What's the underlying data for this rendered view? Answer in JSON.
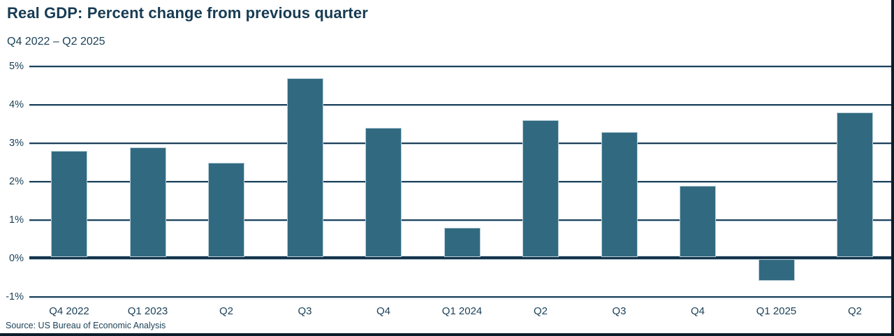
{
  "header": {
    "title": "Real GDP: Percent change from previous quarter",
    "subtitle": "Q4 2022 – Q2 2025"
  },
  "source": "Source: US Bureau of Economic Analysis",
  "colors": {
    "background": "#FFFFFF",
    "bar": "#316A80",
    "grid": "#1E4059",
    "zero_line": "#16354C",
    "text": "#1C4258",
    "title_text": "#173C54",
    "frame": "#0B1D2A"
  },
  "chart_data": {
    "type": "bar",
    "title": "Real GDP: Percent change from previous quarter",
    "subtitle": "Q4 2022 – Q2 2025",
    "categories": [
      "Q4 2022",
      "Q1 2023",
      "Q2",
      "Q3",
      "Q4",
      "Q1 2024",
      "Q2",
      "Q3",
      "Q4",
      "Q1 2025",
      "Q2"
    ],
    "values": [
      2.8,
      2.9,
      2.5,
      4.7,
      3.4,
      0.8,
      3.6,
      3.3,
      1.9,
      -0.6,
      3.8
    ],
    "xlabel": "",
    "ylabel": "",
    "ylim": [
      -1,
      5
    ],
    "yticks": [
      5,
      4,
      3,
      2,
      1,
      0,
      -1
    ],
    "ytick_labels": [
      "5%",
      "4%",
      "3%",
      "2%",
      "1%",
      "0%",
      "-1%"
    ],
    "grid": "horizontal",
    "legend": "none"
  }
}
